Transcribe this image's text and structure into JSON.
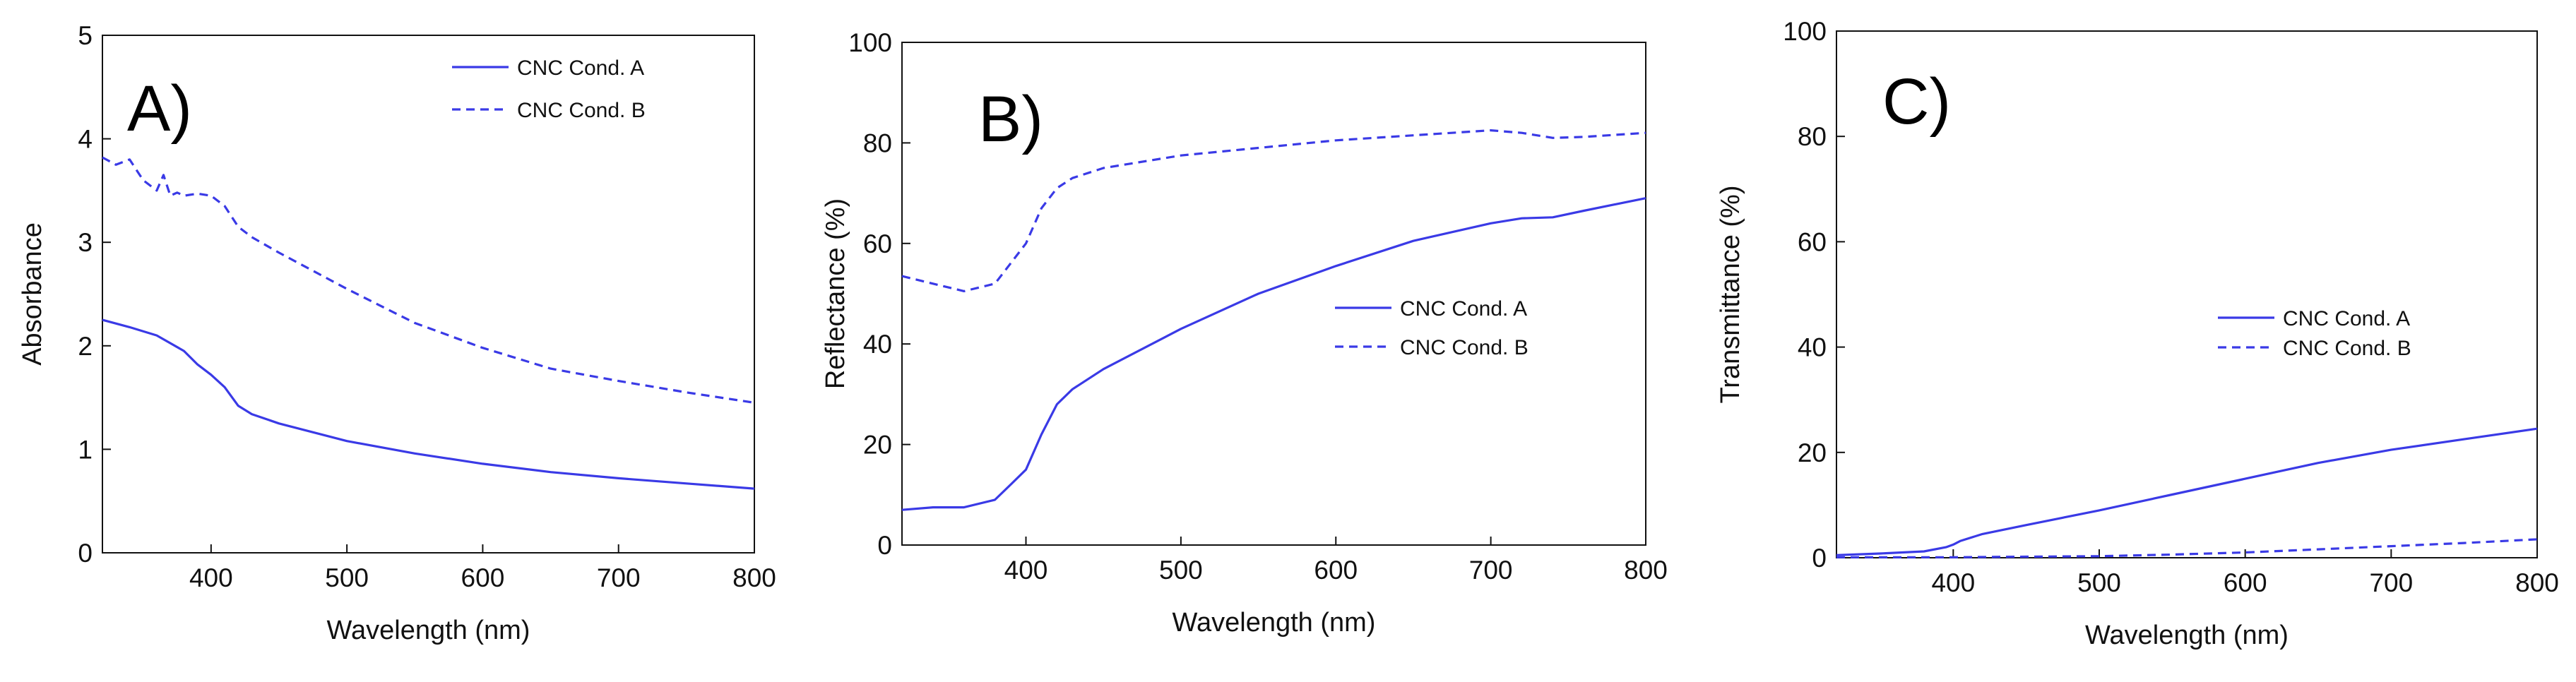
{
  "colors": {
    "series": "#3a3ae6",
    "axis": "#111111",
    "text": "#111111"
  },
  "chart_data": [
    {
      "type": "line",
      "panel_label": "A)",
      "xlabel": "Wavelength (nm)",
      "ylabel": "Absorbance",
      "xlim": [
        320,
        800
      ],
      "ylim": [
        0,
        5
      ],
      "xticks": [
        400,
        500,
        600,
        700,
        800
      ],
      "yticks": [
        0,
        1,
        2,
        3,
        4,
        5
      ],
      "grid": false,
      "legend": "top-right",
      "series": [
        {
          "name": "CNC Cond. A",
          "style": "solid",
          "x": [
            320,
            340,
            360,
            380,
            390,
            400,
            410,
            420,
            430,
            450,
            500,
            550,
            600,
            650,
            700,
            750,
            800
          ],
          "y": [
            2.25,
            2.18,
            2.1,
            1.95,
            1.82,
            1.72,
            1.6,
            1.42,
            1.34,
            1.25,
            1.08,
            0.96,
            0.86,
            0.78,
            0.72,
            0.67,
            0.62
          ]
        },
        {
          "name": "CNC Cond. B",
          "style": "dashed",
          "x": [
            320,
            330,
            340,
            350,
            360,
            365,
            370,
            375,
            380,
            390,
            400,
            410,
            420,
            430,
            450,
            500,
            550,
            600,
            650,
            700,
            750,
            800
          ],
          "y": [
            3.82,
            3.75,
            3.8,
            3.6,
            3.5,
            3.65,
            3.45,
            3.48,
            3.45,
            3.47,
            3.45,
            3.35,
            3.15,
            3.05,
            2.9,
            2.55,
            2.22,
            1.98,
            1.78,
            1.66,
            1.55,
            1.45
          ]
        }
      ]
    },
    {
      "type": "line",
      "panel_label": "B)",
      "xlabel": "Wavelength (nm)",
      "ylabel": "Reflectance (%)",
      "xlim": [
        320,
        800
      ],
      "ylim": [
        0,
        100
      ],
      "xticks": [
        400,
        500,
        600,
        700,
        800
      ],
      "yticks": [
        0,
        20,
        40,
        60,
        80,
        100
      ],
      "grid": false,
      "legend": "right",
      "series": [
        {
          "name": "CNC Cond. A",
          "style": "solid",
          "x": [
            320,
            340,
            360,
            380,
            390,
            400,
            410,
            420,
            430,
            450,
            500,
            550,
            600,
            650,
            700,
            720,
            740,
            760,
            800
          ],
          "y": [
            7,
            7.5,
            7.5,
            9,
            12,
            15,
            22,
            28,
            31,
            35,
            43,
            50,
            55.5,
            60.5,
            64,
            65,
            65.2,
            66.5,
            69
          ]
        },
        {
          "name": "CNC Cond. B",
          "style": "dashed",
          "x": [
            320,
            340,
            360,
            380,
            390,
            400,
            410,
            420,
            430,
            450,
            500,
            550,
            600,
            650,
            700,
            720,
            740,
            760,
            800
          ],
          "y": [
            53.5,
            52,
            50.5,
            52,
            56,
            60,
            67,
            71,
            73,
            75,
            77.5,
            79,
            80.5,
            81.5,
            82.5,
            82,
            81,
            81.2,
            82
          ]
        }
      ]
    },
    {
      "type": "line",
      "panel_label": "C)",
      "xlabel": "Wavelength (nm)",
      "ylabel": "Transmittance (%)",
      "xlim": [
        320,
        800
      ],
      "ylim": [
        0,
        100
      ],
      "xticks": [
        400,
        500,
        600,
        700,
        800
      ],
      "yticks": [
        0,
        20,
        40,
        60,
        80,
        100
      ],
      "grid": false,
      "legend": "right",
      "series": [
        {
          "name": "CNC Cond. A",
          "style": "solid",
          "x": [
            320,
            350,
            380,
            395,
            400,
            405,
            420,
            450,
            500,
            550,
            600,
            650,
            700,
            750,
            800
          ],
          "y": [
            0.5,
            0.8,
            1.2,
            2,
            2.5,
            3.2,
            4.5,
            6.2,
            9,
            12,
            15,
            18,
            20.5,
            22.5,
            24.5
          ]
        },
        {
          "name": "CNC Cond. B",
          "style": "dashed",
          "x": [
            320,
            400,
            450,
            500,
            550,
            600,
            650,
            700,
            750,
            800
          ],
          "y": [
            0.1,
            0.1,
            0.2,
            0.3,
            0.6,
            1.0,
            1.6,
            2.2,
            2.8,
            3.5
          ]
        }
      ]
    }
  ]
}
